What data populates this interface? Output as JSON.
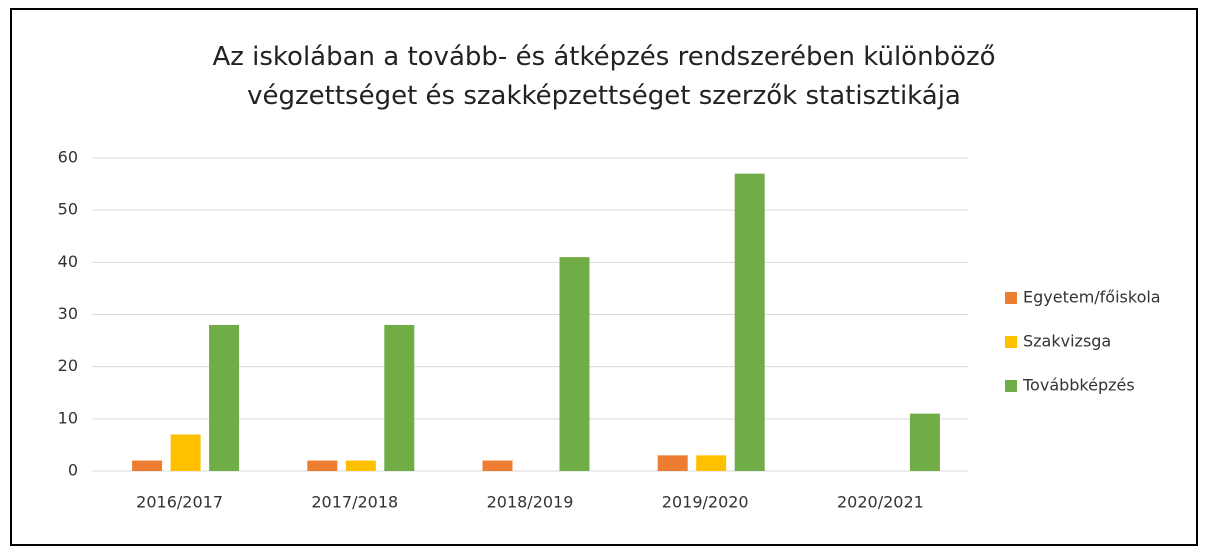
{
  "chart_data": {
    "type": "bar",
    "title": "Az iskolában a tovább- és átképzés rendszerében különböző végzettséget és szakképzettséget szerzők statisztikája",
    "categories": [
      "2016/2017",
      "2017/2018",
      "2018/2019",
      "2019/2020",
      "2020/2021"
    ],
    "series": [
      {
        "name": "Egyetem/főiskola",
        "color": "#ed7d31",
        "values": [
          2,
          2,
          2,
          3,
          0
        ]
      },
      {
        "name": "Szakvizsga",
        "color": "#ffc000",
        "values": [
          7,
          2,
          0,
          3,
          0
        ]
      },
      {
        "name": "Továbbképzés",
        "color": "#70ad47",
        "values": [
          28,
          28,
          41,
          57,
          11
        ]
      }
    ],
    "ylim": [
      0,
      60
    ],
    "yticks": [
      0,
      10,
      20,
      30,
      40,
      50,
      60
    ],
    "grid": true,
    "legend": "right"
  }
}
